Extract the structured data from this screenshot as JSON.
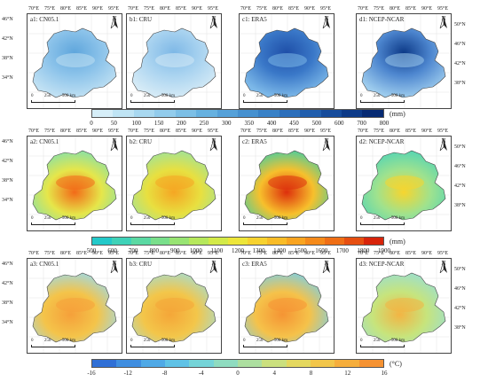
{
  "rows": [
    {
      "panels": [
        {
          "label": "a1: CN05.1",
          "palette": "precip",
          "scheme": 1
        },
        {
          "label": "b1: CRU",
          "palette": "precip",
          "scheme": 2
        },
        {
          "label": "c1: ERA5",
          "palette": "precip",
          "scheme": 3
        },
        {
          "label": "d1: NCEP-NCAR",
          "palette": "precip",
          "scheme": 4
        }
      ],
      "colorbar": {
        "ticks": [
          "0",
          "50",
          "100",
          "150",
          "200",
          "250",
          "300",
          "350",
          "400",
          "450",
          "500",
          "600",
          "700",
          "800"
        ],
        "unit": "(mm)",
        "colors": [
          "#d6eef8",
          "#bfe4f4",
          "#a8d8f0",
          "#92ccec",
          "#7cbfe6",
          "#66b1e0",
          "#55a1d9",
          "#4691d0",
          "#3881c7",
          "#2c6fbb",
          "#205ead",
          "#164c9c",
          "#0d3a88",
          "#062a73"
        ]
      }
    },
    {
      "panels": [
        {
          "label": "a2: CN05.1",
          "palette": "pet",
          "scheme": 1
        },
        {
          "label": "b2: CRU",
          "palette": "pet",
          "scheme": 2
        },
        {
          "label": "c2: ERA5",
          "palette": "pet",
          "scheme": 3
        },
        {
          "label": "d2: NCEP-NCAR",
          "palette": "pet",
          "scheme": 4
        }
      ],
      "colorbar": {
        "ticks": [
          "500",
          "600",
          "700",
          "800",
          "900",
          "1000",
          "1100",
          "1200",
          "1300",
          "1400",
          "1500",
          "1600",
          "1700",
          "1800",
          "1900"
        ],
        "unit": "(mm)",
        "colors": [
          "#23c9c9",
          "#3fd2b8",
          "#5bd9a3",
          "#79df8b",
          "#98e473",
          "#b6e85c",
          "#d3ea48",
          "#ede63a",
          "#f7d22f",
          "#f9bc27",
          "#f9a420",
          "#f58a1a",
          "#ef6e15",
          "#e64e10",
          "#d8240a"
        ]
      }
    },
    {
      "panels": [
        {
          "label": "a3: CN05.1",
          "palette": "temp",
          "scheme": 1
        },
        {
          "label": "b3: CRU",
          "palette": "temp",
          "scheme": 2
        },
        {
          "label": "c3: ERA5",
          "palette": "temp",
          "scheme": 3
        },
        {
          "label": "d3: NCEP-NCAR",
          "palette": "temp",
          "scheme": 4
        }
      ],
      "colorbar": {
        "ticks": [
          "-16",
          "-12",
          "-8",
          "-4",
          "0",
          "4",
          "8",
          "12",
          "16"
        ],
        "unit": "(°C)",
        "colors": [
          "#2f6fd6",
          "#3f8ee0",
          "#4fa9e6",
          "#5fc2e6",
          "#75d4d8",
          "#8fdcc0",
          "#addfa0",
          "#cbe07e",
          "#e4d85f",
          "#f2c64a",
          "#f6ae3c",
          "#f59232"
        ]
      }
    }
  ],
  "axes": {
    "lon_labels": [
      "70°E",
      "75°E",
      "80°E",
      "85°E",
      "90°E",
      "95°E"
    ],
    "lat_left": [
      "46°N",
      "42°N",
      "38°N",
      "34°N"
    ],
    "lat_right": [
      "50°N",
      "46°N",
      "42°N",
      "38°N"
    ]
  },
  "north": "N",
  "scalebar": [
    "0",
    "250",
    "500 km"
  ]
}
